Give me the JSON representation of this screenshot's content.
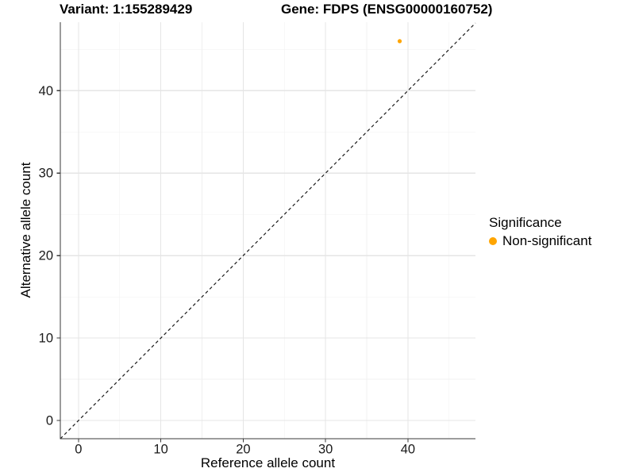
{
  "chart_data": {
    "type": "scatter",
    "titles": {
      "left": "Variant: 1:155289429",
      "right": "Gene: FDPS (ENSG00000160752)"
    },
    "xlabel": "Reference allele count",
    "ylabel": "Alternative allele count",
    "xlim": [
      -2.2,
      48.2
    ],
    "ylim": [
      -2.2,
      48.3
    ],
    "x_ticks": {
      "major": [
        0,
        10,
        20,
        30,
        40
      ],
      "minor": [
        5,
        15,
        25,
        35,
        45
      ]
    },
    "y_ticks": {
      "major": [
        0,
        10,
        20,
        30,
        40
      ],
      "minor": [
        5,
        15,
        25,
        35,
        45
      ]
    },
    "grid": "major+minor",
    "background": "#FFFFFF",
    "reference_line": {
      "type": "identity",
      "slope": 1,
      "intercept": 0,
      "style": "dashed",
      "color": "#1A1A1A"
    },
    "series": [
      {
        "name": "Non-significant",
        "color": "#FFA500",
        "marker": "circle",
        "points": [
          {
            "x": 39,
            "y": 46
          }
        ]
      }
    ],
    "legend": {
      "title": "Significance",
      "position": "right",
      "items": [
        {
          "label": "Non-significant",
          "color": "#FFA500"
        }
      ]
    },
    "colors": {
      "grid_major": "#E5E5E5",
      "grid_minor": "#F0F0F0",
      "axis_line": "#3A3A3A",
      "tick_text": "#1A1A1A"
    }
  }
}
